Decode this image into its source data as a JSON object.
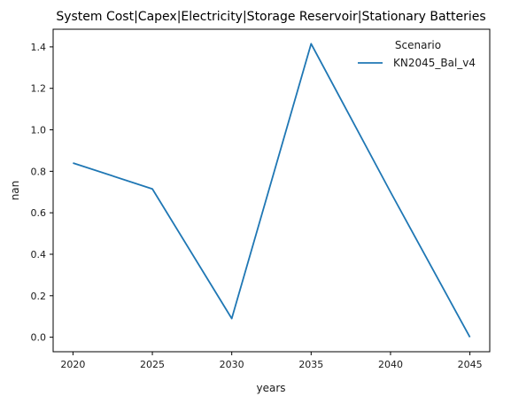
{
  "chart_data": {
    "type": "line",
    "title": "System Cost|Capex|Electricity|Storage Reservoir|Stationary Batteries",
    "xlabel": "years",
    "ylabel": "nan",
    "x": [
      2020,
      2025,
      2030,
      2035,
      2040,
      2045
    ],
    "xticks": [
      2020,
      2025,
      2030,
      2035,
      2040,
      2045
    ],
    "yticks": [
      0.0,
      0.2,
      0.4,
      0.6,
      0.8,
      1.0,
      1.2,
      1.4
    ],
    "xlim": [
      2018.75,
      2046.25
    ],
    "ylim": [
      -0.07,
      1.485
    ],
    "grid": false,
    "legend": {
      "title": "Scenario",
      "placement": "top-right"
    },
    "series": [
      {
        "name": "KN2045_Bal_v4",
        "color": "#1f77b4",
        "values": [
          0.84,
          0.715,
          0.09,
          1.415,
          0.7,
          0.0
        ]
      }
    ]
  }
}
